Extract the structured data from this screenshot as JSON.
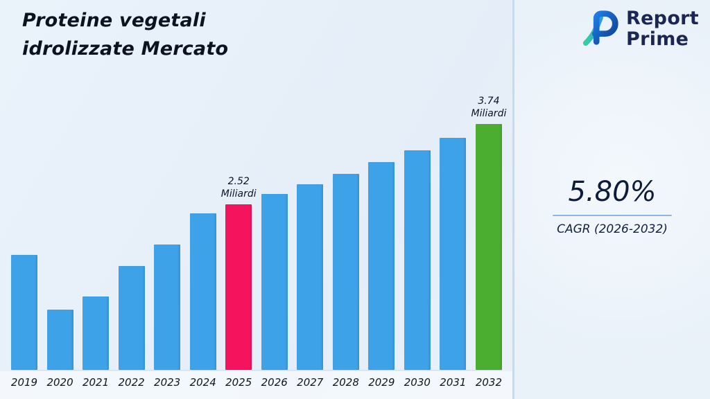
{
  "title": {
    "line1": "Proteine vegetali",
    "line2": "idrolizzate Mercato"
  },
  "logo": {
    "name": "Report Prime",
    "line1": "Report",
    "line2": "Prime"
  },
  "stats": {
    "cagr_value": "5.80%",
    "cagr_label": "CAGR (2026-2032)"
  },
  "chart_data": {
    "type": "bar",
    "title": "Proteine vegetali idrolizzate Mercato",
    "xlabel": "",
    "ylabel": "",
    "unit": "Miliardi",
    "categories": [
      "2019",
      "2020",
      "2021",
      "2022",
      "2023",
      "2024",
      "2025",
      "2026",
      "2027",
      "2028",
      "2029",
      "2030",
      "2031",
      "2032"
    ],
    "values": [
      1.75,
      0.92,
      1.12,
      1.58,
      1.9,
      2.38,
      2.52,
      2.67,
      2.82,
      2.98,
      3.16,
      3.34,
      3.53,
      3.74
    ],
    "annotations": [
      {
        "year": "2025",
        "value": "2.52",
        "unit": "Miliardi"
      },
      {
        "year": "2032",
        "value": "3.74",
        "unit": "Miliardi"
      }
    ],
    "colors": {
      "default": "#3EA2E9",
      "overrides": {
        "2025": "#F4145E",
        "2032": "#4BAE30"
      }
    },
    "ylim": [
      0,
      4.2
    ],
    "grid": false,
    "legend": "none"
  }
}
